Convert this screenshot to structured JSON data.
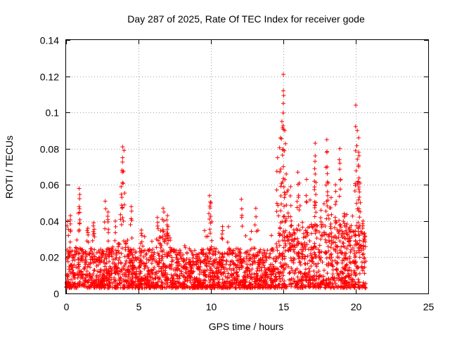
{
  "chart_data": {
    "type": "scatter",
    "title": "Day 287 of 2025, Rate Of TEC Index for receiver gode",
    "xlabel": "GPS time / hours",
    "ylabel": "ROTI / TECUs",
    "xlim": [
      0,
      25
    ],
    "ylim": [
      0,
      0.14
    ],
    "xticks": [
      0,
      5,
      10,
      15,
      20,
      25
    ],
    "yticks": [
      0,
      0.02,
      0.04,
      0.06,
      0.08,
      0.1,
      0.12,
      0.14
    ],
    "xtick_labels": [
      "0",
      "5",
      "10",
      "15",
      "20",
      "25"
    ],
    "ytick_labels": [
      "0",
      "0.02",
      "0.04",
      "0.06",
      "0.08",
      "0.1",
      "0.12",
      "0.14"
    ],
    "grid": true,
    "marker": "+",
    "color": "#ff0000",
    "data_x_range": [
      0,
      20.7
    ],
    "typical_band": [
      0.003,
      0.025
    ],
    "series": [
      {
        "name": "ROTI",
        "peaks": [
          {
            "x": 0.1,
            "y": 0.04
          },
          {
            "x": 0.3,
            "y": 0.043
          },
          {
            "x": 0.9,
            "y": 0.058
          },
          {
            "x": 0.9,
            "y": 0.048
          },
          {
            "x": 1.5,
            "y": 0.036
          },
          {
            "x": 1.9,
            "y": 0.039
          },
          {
            "x": 2.7,
            "y": 0.051
          },
          {
            "x": 2.9,
            "y": 0.045
          },
          {
            "x": 3.4,
            "y": 0.04
          },
          {
            "x": 3.8,
            "y": 0.059
          },
          {
            "x": 3.9,
            "y": 0.081
          },
          {
            "x": 3.9,
            "y": 0.075
          },
          {
            "x": 4.0,
            "y": 0.079
          },
          {
            "x": 4.5,
            "y": 0.048
          },
          {
            "x": 5.2,
            "y": 0.035
          },
          {
            "x": 6.3,
            "y": 0.042
          },
          {
            "x": 6.7,
            "y": 0.047
          },
          {
            "x": 7.0,
            "y": 0.043
          },
          {
            "x": 9.9,
            "y": 0.054
          },
          {
            "x": 10.0,
            "y": 0.05
          },
          {
            "x": 10.8,
            "y": 0.037
          },
          {
            "x": 12.1,
            "y": 0.052
          },
          {
            "x": 13.1,
            "y": 0.047
          },
          {
            "x": 14.6,
            "y": 0.075
          },
          {
            "x": 14.8,
            "y": 0.086
          },
          {
            "x": 14.9,
            "y": 0.095
          },
          {
            "x": 15.0,
            "y": 0.121
          },
          {
            "x": 15.0,
            "y": 0.112
          },
          {
            "x": 15.0,
            "y": 0.105
          },
          {
            "x": 15.1,
            "y": 0.09
          },
          {
            "x": 15.2,
            "y": 0.066
          },
          {
            "x": 15.5,
            "y": 0.059
          },
          {
            "x": 16.0,
            "y": 0.067
          },
          {
            "x": 16.1,
            "y": 0.061
          },
          {
            "x": 16.6,
            "y": 0.063
          },
          {
            "x": 17.2,
            "y": 0.083
          },
          {
            "x": 17.2,
            "y": 0.076
          },
          {
            "x": 17.2,
            "y": 0.066
          },
          {
            "x": 17.6,
            "y": 0.046
          },
          {
            "x": 18.0,
            "y": 0.085
          },
          {
            "x": 18.0,
            "y": 0.078
          },
          {
            "x": 18.1,
            "y": 0.061
          },
          {
            "x": 18.3,
            "y": 0.053
          },
          {
            "x": 18.6,
            "y": 0.06
          },
          {
            "x": 18.9,
            "y": 0.08
          },
          {
            "x": 18.9,
            "y": 0.072
          },
          {
            "x": 19.2,
            "y": 0.044
          },
          {
            "x": 20.0,
            "y": 0.104
          },
          {
            "x": 20.1,
            "y": 0.09
          },
          {
            "x": 20.2,
            "y": 0.086
          },
          {
            "x": 20.2,
            "y": 0.078
          },
          {
            "x": 20.2,
            "y": 0.07
          },
          {
            "x": 20.3,
            "y": 0.061
          },
          {
            "x": 20.5,
            "y": 0.04
          }
        ]
      }
    ]
  }
}
